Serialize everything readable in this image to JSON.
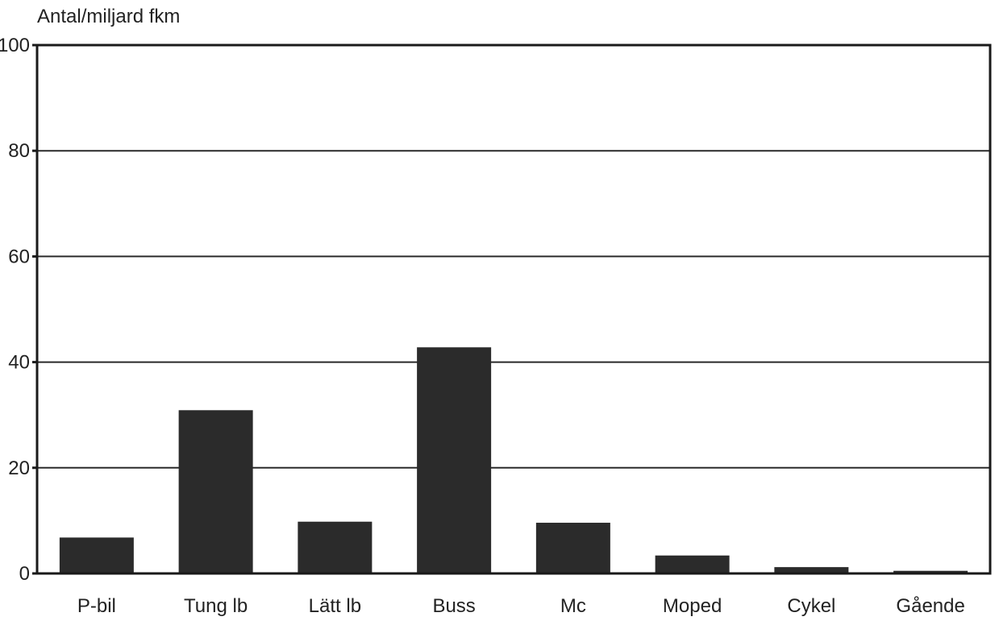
{
  "chart_data": {
    "type": "bar",
    "title": "",
    "xlabel": "",
    "ylabel": "Antal/miljard fkm",
    "categories": [
      "P-bil",
      "Tung lb",
      "Lätt lb",
      "Buss",
      "Mc",
      "Moped",
      "Cykel",
      "Gående"
    ],
    "values": [
      6.8,
      30.9,
      9.8,
      42.8,
      9.6,
      3.4,
      1.2,
      0.5
    ],
    "ylim": [
      0,
      100
    ],
    "yticks": [
      0,
      20,
      40,
      60,
      80,
      100
    ],
    "grid": true,
    "legend": "none",
    "bar_color": "#2b2b2b",
    "axis_color": "#1a1a1a",
    "grid_color": "#2a2a2a",
    "background_color": "#ffffff"
  }
}
